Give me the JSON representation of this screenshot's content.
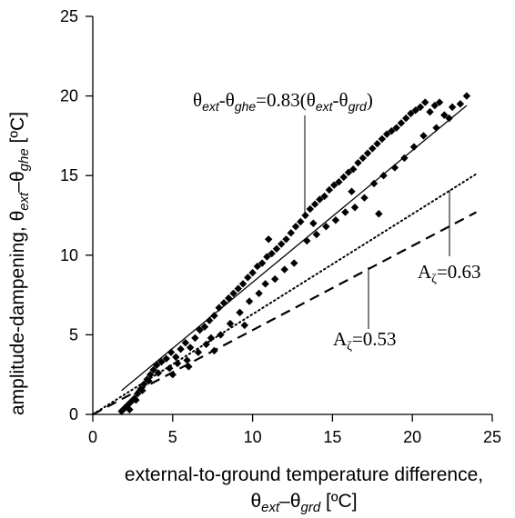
{
  "chart_data": {
    "type": "scatter",
    "xlim": [
      0,
      25
    ],
    "ylim": [
      0,
      25
    ],
    "x_ticks": [
      0,
      5,
      10,
      15,
      20,
      25
    ],
    "y_ticks": [
      0,
      5,
      10,
      15,
      20,
      25
    ],
    "xlabel": {
      "line1": "external-to-ground temperature difference,",
      "theta": "θ",
      "sub1": "ext",
      "sep": "–θ",
      "sub2": "grd",
      "unit": " [ºC]"
    },
    "ylabel": {
      "prefix": "amplitude-dampening, θ",
      "sub1": "ext",
      "sep": "–θ",
      "sub2": "ghe",
      "unit": " [ºC]"
    },
    "grid": false,
    "series": [
      {
        "style": "diamond-markers",
        "color": "#000000",
        "x": [
          1.8,
          2.0,
          2.2,
          2.4,
          2.6,
          2.8,
          3.0,
          3.2,
          3.4,
          3.6,
          3.8,
          4.0,
          4.3,
          4.6,
          4.9,
          5.2,
          5.5,
          5.8,
          6.1,
          6.4,
          6.7,
          7.0,
          7.3,
          7.6,
          7.9,
          8.2,
          8.5,
          8.8,
          9.1,
          9.4,
          9.7,
          10.0,
          10.3,
          10.6,
          10.9,
          11.2,
          11.5,
          11.8,
          12.1,
          12.4,
          12.7,
          13.0,
          13.3,
          13.6,
          13.9,
          14.2,
          14.5,
          14.8,
          15.1,
          15.4,
          15.7,
          16.0,
          16.3,
          16.6,
          16.9,
          17.2,
          17.5,
          17.8,
          18.1,
          18.4,
          18.7,
          19.0,
          19.3,
          19.6,
          19.9,
          20.2,
          20.5,
          20.8,
          21.1,
          21.4,
          21.7,
          22.0,
          22.5,
          23.0,
          23.4,
          2.3,
          2.7,
          3.1,
          3.5,
          4.1,
          4.8,
          5.3,
          5.9,
          6.6,
          7.1,
          7.4,
          8.0,
          8.6,
          9.2,
          9.8,
          10.4,
          10.8,
          11.4,
          12.0,
          12.6,
          13.4,
          14.0,
          14.6,
          15.2,
          15.8,
          16.4,
          17.0,
          17.6,
          18.2,
          18.9,
          19.5,
          20.1,
          20.7,
          21.5,
          22.3,
          5.0,
          6.0,
          7.6,
          9.5,
          11.0,
          13.8,
          16.2,
          17.9
        ],
        "y": [
          0.2,
          0.4,
          0.6,
          0.8,
          1.0,
          1.3,
          1.6,
          1.9,
          2.2,
          2.5,
          2.8,
          3.1,
          3.3,
          3.5,
          3.9,
          3.6,
          4.1,
          4.5,
          4.2,
          4.8,
          5.3,
          5.5,
          5.9,
          6.2,
          6.7,
          7.0,
          7.3,
          7.6,
          7.9,
          8.2,
          8.6,
          8.9,
          9.3,
          9.5,
          9.9,
          10.1,
          10.4,
          10.7,
          11.0,
          11.4,
          11.8,
          12.1,
          12.5,
          12.9,
          13.2,
          13.5,
          13.7,
          14.1,
          14.4,
          14.6,
          14.9,
          15.2,
          15.4,
          15.8,
          16.1,
          16.4,
          16.7,
          17.0,
          17.3,
          17.6,
          17.8,
          18.0,
          18.3,
          18.6,
          18.9,
          19.1,
          19.3,
          19.6,
          19.0,
          19.4,
          19.6,
          18.8,
          19.3,
          19.5,
          20.0,
          0.3,
          0.9,
          1.5,
          2.1,
          2.6,
          2.9,
          3.2,
          3.4,
          3.9,
          4.4,
          4.8,
          5.0,
          5.7,
          6.4,
          7.1,
          7.6,
          8.2,
          8.5,
          9.1,
          9.5,
          10.9,
          11.3,
          11.8,
          12.2,
          12.7,
          13.0,
          13.6,
          14.5,
          15.0,
          15.5,
          16.1,
          16.8,
          17.5,
          18.0,
          18.6,
          2.5,
          3.0,
          4.0,
          5.6,
          11.0,
          12.0,
          14.0,
          12.6
        ]
      },
      {
        "style": "solid",
        "color": "#000000",
        "x": [
          1.8,
          23.4
        ],
        "y": [
          1.5,
          19.4
        ]
      },
      {
        "style": "dotted",
        "color": "#000000",
        "x": [
          0.0,
          24.0
        ],
        "y": [
          0.0,
          15.1
        ]
      },
      {
        "style": "dashed",
        "color": "#000000",
        "x": [
          0.0,
          24.0
        ],
        "y": [
          0.0,
          12.7
        ]
      }
    ],
    "annotations": {
      "main_eq": {
        "t1": "θ",
        "s1": "ext",
        "t2": "-θ",
        "s2": "ghe",
        "t3": "=0.83(θ",
        "s3": "ext",
        "t4": "-θ",
        "s4": "grd",
        "t5": ")"
      },
      "a063": {
        "base": "A",
        "sub": "ζ",
        "value": "=0.63"
      },
      "a053": {
        "base": "A",
        "sub": "ζ",
        "value": "=0.53"
      }
    }
  }
}
